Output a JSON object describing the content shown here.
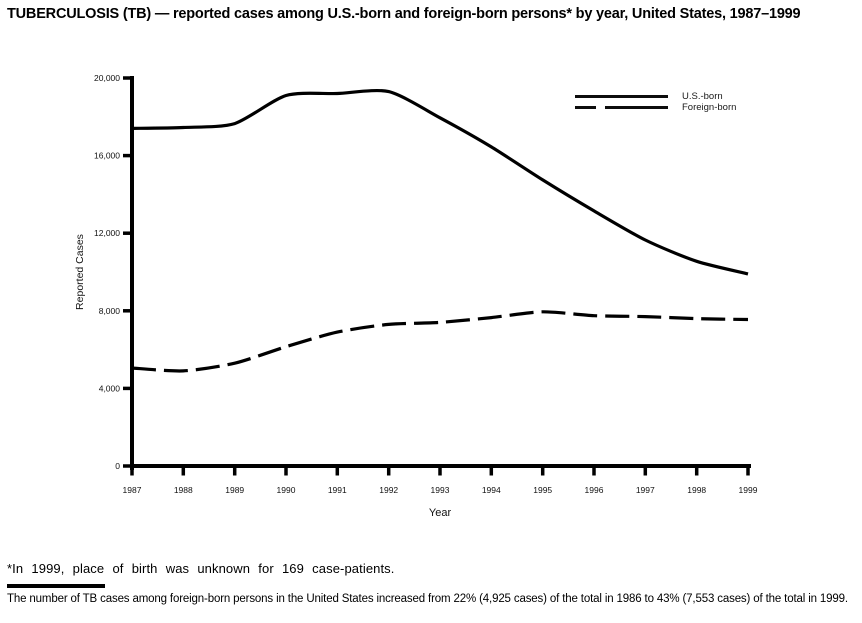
{
  "title": "TUBERCULOSIS (TB) — reported cases among U.S.-born and foreign-born persons* by year, United States, 1987–1999",
  "chart_data": {
    "type": "line",
    "title": "TUBERCULOSIS (TB) — reported cases among U.S.-born and foreign-born persons* by year, United States, 1987–1999",
    "xlabel": "Year",
    "ylabel": "Reported Cases",
    "x": [
      1987,
      1988,
      1989,
      1990,
      1991,
      1992,
      1993,
      1994,
      1995,
      1996,
      1997,
      1998,
      1999
    ],
    "xtick_labels": [
      "1987",
      "1988",
      "1989",
      "1990",
      "1991",
      "1992",
      "1993",
      "1994",
      "1995",
      "1996",
      "1997",
      "1998",
      "1999"
    ],
    "series": [
      {
        "name": "U.S.-born",
        "style": "solid",
        "color": "#000000",
        "values": [
          17400,
          17450,
          17650,
          19100,
          19200,
          19300,
          17950,
          16450,
          14750,
          13150,
          11650,
          10550,
          9900
        ]
      },
      {
        "name": "Foreign-born",
        "style": "dashed",
        "color": "#000000",
        "values": [
          5050,
          4900,
          5300,
          6150,
          6900,
          7300,
          7400,
          7650,
          7950,
          7750,
          7700,
          7600,
          7550
        ]
      }
    ],
    "ylim": [
      0,
      20000
    ],
    "yticks": [
      0,
      4000,
      8000,
      12000,
      16000,
      20000
    ],
    "ytick_labels": [
      "0",
      "4,000",
      "8,000",
      "12,000",
      "16,000",
      "20,000"
    ],
    "grid": false,
    "legend_position": "top-right"
  },
  "legend": {
    "items": [
      {
        "label": "U.S.-born",
        "line_style": "solid"
      },
      {
        "label": "Foreign-born",
        "line_style": "dashed"
      }
    ]
  },
  "footnotes": {
    "asterisk": "*In 1999, place of birth was unknown for 169 case-patients.",
    "note": "The number of TB cases among foreign-born persons in the United States increased from 22% (4,925 cases) of the total in 1986 to 43% (7,553 cases) of the total in 1999."
  },
  "colors": {
    "line": "#000000",
    "text": "#000000",
    "background": "#ffffff"
  }
}
